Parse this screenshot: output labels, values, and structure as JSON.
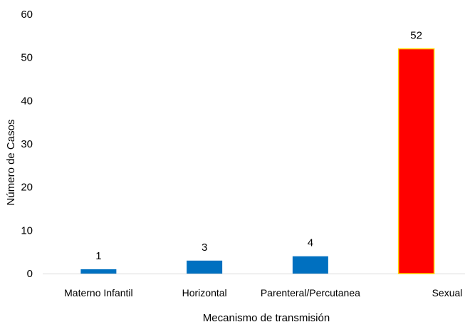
{
  "chart_data": {
    "type": "bar",
    "categories": [
      "Materno Infantil",
      "Horizontal",
      "Parenteral/Percutanea",
      "Sexual"
    ],
    "values": [
      1,
      3,
      4,
      52
    ],
    "data_labels": [
      "1",
      "3",
      "4",
      "52"
    ],
    "bar_colors": [
      "#0070c0",
      "#0070c0",
      "#0070c0",
      "#ff0000"
    ],
    "highlight_border_color": "#ffd700",
    "xlabel": "Mecanismo de transmisión",
    "ylabel": "Número de Casos",
    "ylim": [
      0,
      60
    ],
    "yticks": [
      "0",
      "10",
      "20",
      "30",
      "40",
      "50",
      "60"
    ],
    "grid": false,
    "legend": false
  }
}
